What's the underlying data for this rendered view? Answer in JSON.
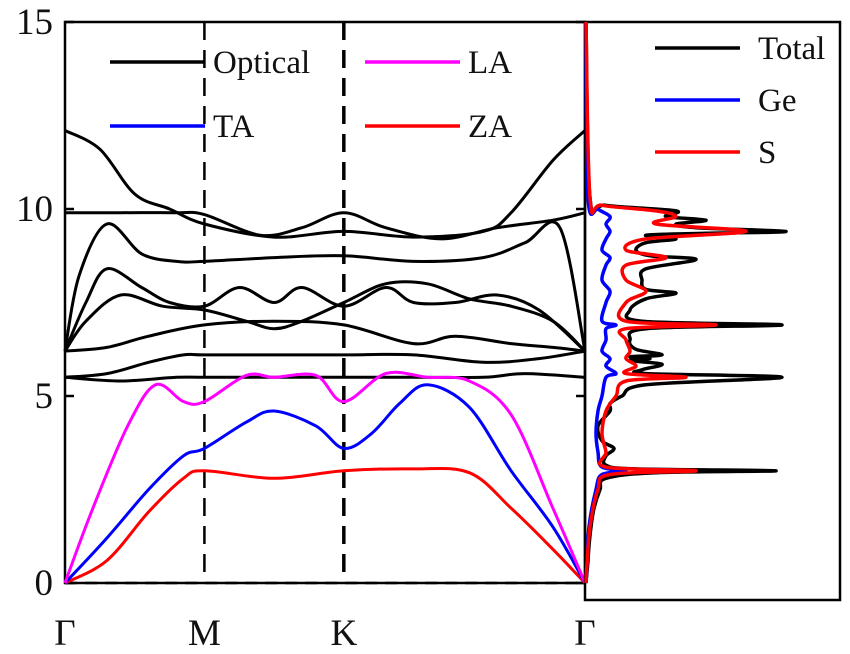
{
  "chart_data": [
    {
      "type": "line",
      "panel": "phonon-dispersion",
      "xlabel": "",
      "ylabel": "",
      "ylim": [
        0,
        15
      ],
      "yticks": [
        0,
        5,
        10,
        15
      ],
      "x_ticks": [
        {
          "label": "Γ",
          "pos": 0
        },
        {
          "label": "M",
          "pos": 1
        },
        {
          "label": "K",
          "pos": 2
        },
        {
          "label": "Γ",
          "pos": 3.73
        }
      ],
      "legend_position": "top",
      "legend": [
        {
          "label": "Optical",
          "color": "#000000"
        },
        {
          "label": "LA",
          "color": "#ff00ff"
        },
        {
          "label": "TA",
          "color": "#0000ff"
        },
        {
          "label": "ZA",
          "color": "#ff0000"
        }
      ],
      "series": [
        {
          "name": "ZA",
          "color": "#ff0000",
          "x": [
            0,
            0.3,
            0.6,
            0.85,
            1.0,
            1.5,
            2.0,
            2.5,
            2.9,
            3.2,
            3.5,
            3.73
          ],
          "y": [
            0,
            0.6,
            1.9,
            2.8,
            3.0,
            2.8,
            3.0,
            3.05,
            2.95,
            2.0,
            0.9,
            0
          ]
        },
        {
          "name": "TA",
          "color": "#0000ff",
          "x": [
            0,
            0.3,
            0.6,
            0.85,
            1.0,
            1.3,
            1.5,
            1.8,
            2.0,
            2.2,
            2.4,
            2.6,
            2.9,
            3.2,
            3.5,
            3.73
          ],
          "y": [
            0,
            1.2,
            2.5,
            3.4,
            3.6,
            4.3,
            4.6,
            4.2,
            3.6,
            4.0,
            4.8,
            5.3,
            4.7,
            3.0,
            1.5,
            0
          ]
        },
        {
          "name": "LA",
          "color": "#ff00ff",
          "x": [
            0,
            0.2,
            0.45,
            0.65,
            0.85,
            1.0,
            1.3,
            1.5,
            1.8,
            2.0,
            2.3,
            2.6,
            2.9,
            3.2,
            3.5,
            3.73
          ],
          "y": [
            0,
            2.0,
            4.2,
            5.3,
            4.85,
            4.85,
            5.55,
            5.5,
            5.55,
            4.85,
            5.6,
            5.5,
            5.4,
            4.5,
            2.0,
            0
          ]
        },
        {
          "name": "",
          "color": "#000000",
          "x": [
            0,
            0.4,
            0.8,
            1.0,
            1.5,
            2.0,
            2.5,
            3.0,
            3.3,
            3.73
          ],
          "y": [
            5.5,
            5.4,
            5.5,
            5.5,
            5.5,
            5.5,
            5.5,
            5.5,
            5.6,
            5.5
          ]
        },
        {
          "name": "",
          "color": "#000000",
          "x": [
            0,
            0.3,
            0.6,
            0.85,
            1.0,
            1.5,
            2.0,
            2.5,
            3.0,
            3.4,
            3.73
          ],
          "y": [
            5.5,
            5.6,
            5.9,
            6.1,
            6.1,
            6.1,
            6.1,
            6.1,
            5.9,
            6.0,
            6.2
          ]
        },
        {
          "name": "",
          "color": "#000000",
          "x": [
            0,
            0.3,
            0.6,
            1.0,
            1.5,
            2.0,
            2.5,
            2.8,
            3.2,
            3.5,
            3.73
          ],
          "y": [
            6.2,
            6.3,
            6.6,
            6.9,
            7.0,
            6.9,
            6.4,
            6.6,
            6.4,
            6.3,
            6.2
          ]
        },
        {
          "name": "",
          "color": "#000000",
          "x": [
            0,
            0.15,
            0.4,
            0.7,
            1.0,
            1.3,
            1.5,
            1.7,
            2.0,
            2.3,
            2.6,
            2.9,
            3.2,
            3.5,
            3.73
          ],
          "y": [
            6.2,
            7.0,
            7.7,
            7.4,
            7.3,
            7.0,
            6.8,
            7.0,
            7.5,
            8.0,
            8.0,
            7.6,
            7.4,
            7.0,
            6.2
          ]
        },
        {
          "name": "",
          "color": "#000000",
          "x": [
            0,
            0.15,
            0.3,
            0.55,
            0.75,
            1.0,
            1.25,
            1.5,
            1.7,
            2.0,
            2.3,
            2.5,
            2.8,
            3.1,
            3.4,
            3.73
          ],
          "y": [
            6.2,
            7.5,
            8.4,
            7.9,
            7.5,
            7.4,
            7.9,
            7.5,
            7.9,
            7.4,
            7.9,
            7.5,
            7.5,
            7.7,
            7.3,
            6.2
          ]
        },
        {
          "name": "",
          "color": "#000000",
          "x": [
            0,
            0.1,
            0.3,
            0.55,
            0.8,
            1.0,
            1.5,
            2.0,
            2.5,
            3.0,
            3.3,
            3.55,
            3.73
          ],
          "y": [
            6.2,
            8.2,
            9.6,
            8.8,
            8.6,
            8.6,
            8.7,
            8.75,
            8.6,
            8.7,
            9.1,
            9.5,
            6.2
          ]
        },
        {
          "name": "",
          "color": "#000000",
          "x": [
            0,
            0.4,
            0.8,
            1.0,
            1.4,
            1.7,
            2.0,
            2.3,
            2.7,
            3.1,
            3.5,
            3.73
          ],
          "y": [
            9.9,
            9.9,
            9.9,
            9.85,
            9.3,
            9.5,
            9.9,
            9.5,
            9.2,
            9.5,
            9.7,
            9.9
          ]
        },
        {
          "name": "",
          "color": "#000000",
          "x": [
            0,
            0.25,
            0.5,
            0.75,
            1.0,
            1.5,
            2.0,
            2.5,
            3.0,
            3.2,
            3.5,
            3.73
          ],
          "y": [
            12.1,
            11.6,
            10.4,
            10.0,
            9.6,
            9.25,
            9.4,
            9.25,
            9.4,
            9.9,
            11.3,
            12.1
          ]
        }
      ]
    },
    {
      "type": "line",
      "panel": "density-of-states",
      "ylim": [
        0,
        15
      ],
      "legend_position": "top-right",
      "legend": [
        {
          "label": "Total",
          "color": "#000000"
        },
        {
          "label": "Ge",
          "color": "#0000ff"
        },
        {
          "label": "S",
          "color": "#ff0000"
        }
      ],
      "series": [
        {
          "name": "Total",
          "color": "#000000",
          "energy": [
            0,
            0.3,
            0.6,
            1.0,
            1.5,
            2.0,
            2.5,
            2.8,
            2.95,
            3.0,
            3.05,
            3.15,
            3.4,
            3.6,
            3.8,
            4.2,
            4.6,
            4.8,
            5.0,
            5.3,
            5.5,
            5.6,
            5.7,
            5.85,
            5.95,
            6.0,
            6.05,
            6.1,
            6.25,
            6.5,
            6.8,
            6.9,
            7.0,
            7.3,
            7.6,
            7.75,
            7.85,
            8.1,
            8.4,
            8.65,
            8.75,
            8.9,
            9.1,
            9.2,
            9.3,
            9.35,
            9.4,
            9.5,
            9.6,
            9.7,
            9.8,
            9.95,
            10.1,
            10.3,
            15
          ],
          "dos": [
            0,
            0.005,
            0.01,
            0.015,
            0.025,
            0.04,
            0.07,
            0.1,
            0.35,
            0.95,
            0.25,
            0.1,
            0.1,
            0.14,
            0.08,
            0.06,
            0.12,
            0.12,
            0.18,
            0.3,
            0.98,
            0.3,
            0.28,
            0.38,
            0.22,
            0.32,
            0.22,
            0.38,
            0.25,
            0.22,
            0.3,
            0.98,
            0.28,
            0.22,
            0.3,
            0.45,
            0.3,
            0.28,
            0.3,
            0.55,
            0.32,
            0.25,
            0.3,
            0.45,
            0.3,
            0.6,
            1.0,
            0.55,
            0.45,
            0.6,
            0.4,
            0.45,
            0.1,
            0.02,
            0
          ]
        },
        {
          "name": "Ge",
          "color": "#0000ff",
          "energy": [
            0,
            0.5,
            1.5,
            2.5,
            2.9,
            3.0,
            3.1,
            3.5,
            4.0,
            4.6,
            5.0,
            5.5,
            5.6,
            5.8,
            6.0,
            6.2,
            6.5,
            6.8,
            6.9,
            7.0,
            7.5,
            7.8,
            8.1,
            8.5,
            8.7,
            8.9,
            9.2,
            9.4,
            9.6,
            9.8,
            10.0,
            10.3,
            15
          ],
          "dos": [
            0,
            0.005,
            0.015,
            0.05,
            0.08,
            0.2,
            0.08,
            0.06,
            0.05,
            0.06,
            0.08,
            0.1,
            0.15,
            0.1,
            0.12,
            0.08,
            0.1,
            0.1,
            0.15,
            0.08,
            0.1,
            0.12,
            0.08,
            0.1,
            0.12,
            0.08,
            0.1,
            0.12,
            0.1,
            0.12,
            0.06,
            0.01,
            0
          ]
        },
        {
          "name": "S",
          "color": "#ff0000",
          "energy": [
            0,
            0.5,
            1.5,
            2.5,
            2.9,
            3.0,
            3.1,
            3.5,
            4.0,
            4.6,
            5.0,
            5.4,
            5.5,
            5.6,
            5.8,
            6.0,
            6.2,
            6.5,
            6.8,
            6.9,
            7.0,
            7.5,
            7.8,
            8.1,
            8.5,
            8.7,
            8.9,
            9.2,
            9.4,
            9.6,
            9.8,
            9.95,
            10.1,
            10.3,
            15
          ],
          "dos": [
            0,
            0.005,
            0.02,
            0.06,
            0.12,
            0.55,
            0.1,
            0.1,
            0.08,
            0.1,
            0.15,
            0.2,
            0.5,
            0.2,
            0.25,
            0.2,
            0.22,
            0.2,
            0.2,
            0.65,
            0.2,
            0.2,
            0.3,
            0.2,
            0.2,
            0.4,
            0.2,
            0.3,
            0.8,
            0.35,
            0.45,
            0.35,
            0.08,
            0.02,
            0
          ]
        }
      ]
    }
  ]
}
